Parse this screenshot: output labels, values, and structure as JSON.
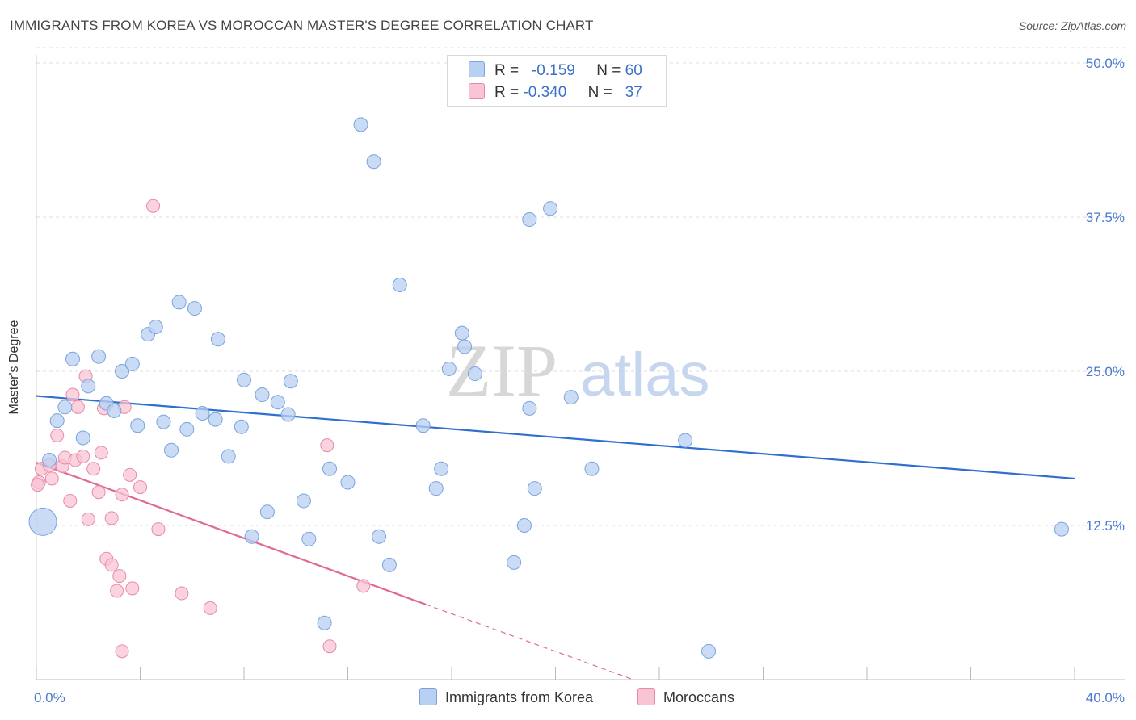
{
  "title": "IMMIGRANTS FROM KOREA VS MOROCCAN MASTER'S DEGREE CORRELATION CHART",
  "source": "Source: ZipAtlas.com",
  "watermark": {
    "zip": "ZIP",
    "atlas": "atlas"
  },
  "legend": {
    "rows": [
      {
        "r_label": "R =",
        "r_value": "-0.159",
        "n_label": "N =",
        "n_value": "60"
      },
      {
        "r_label": "R =",
        "r_value": "-0.340",
        "n_label": "N =",
        "n_value": "37"
      }
    ]
  },
  "bottom_legend": {
    "korea": "Immigrants from Korea",
    "moroccans": "Moroccans"
  },
  "colors": {
    "korea_fill": "#b8d0f2",
    "korea_stroke": "#7aa3de",
    "korea_line": "#2f6fd0",
    "moroccan_fill": "#f8c4d4",
    "moroccan_stroke": "#e88aa8",
    "moroccan_line": "#e06a96",
    "tick_text": "#4a7bd0",
    "grid": "#dddddd"
  },
  "chart_data": {
    "type": "scatter",
    "title": "IMMIGRANTS FROM KOREA VS MOROCCAN MASTER'S DEGREE CORRELATION CHART",
    "xlabel": "",
    "ylabel": "Master's Degree",
    "xlim": [
      0,
      40
    ],
    "ylim": [
      0,
      50
    ],
    "x_tick_labels": [
      "0.0%",
      "40.0%"
    ],
    "y_ticks": [
      12.5,
      25.0,
      37.5,
      50.0
    ],
    "y_tick_labels": [
      "12.5%",
      "25.0%",
      "37.5%",
      "50.0%"
    ],
    "legend_position": "top-center",
    "series": [
      {
        "name": "Immigrants from Korea",
        "r": -0.159,
        "n": 60,
        "trend": {
          "x": [
            0,
            40
          ],
          "y": [
            23.0,
            16.3
          ]
        },
        "points": [
          {
            "x": 0.5,
            "y": 17.8
          },
          {
            "x": 0.8,
            "y": 21.0
          },
          {
            "x": 1.1,
            "y": 22.1
          },
          {
            "x": 1.4,
            "y": 26.0
          },
          {
            "x": 1.8,
            "y": 19.6
          },
          {
            "x": 2.0,
            "y": 23.8
          },
          {
            "x": 2.4,
            "y": 26.2
          },
          {
            "x": 2.7,
            "y": 22.4
          },
          {
            "x": 3.0,
            "y": 21.8
          },
          {
            "x": 3.3,
            "y": 25.0
          },
          {
            "x": 3.7,
            "y": 25.6
          },
          {
            "x": 3.9,
            "y": 20.6
          },
          {
            "x": 4.3,
            "y": 28.0
          },
          {
            "x": 4.6,
            "y": 28.6
          },
          {
            "x": 4.9,
            "y": 20.9
          },
          {
            "x": 5.2,
            "y": 18.6
          },
          {
            "x": 5.5,
            "y": 30.6
          },
          {
            "x": 5.8,
            "y": 20.3
          },
          {
            "x": 6.1,
            "y": 30.1
          },
          {
            "x": 6.4,
            "y": 21.6
          },
          {
            "x": 6.9,
            "y": 21.1
          },
          {
            "x": 7.0,
            "y": 27.6
          },
          {
            "x": 7.4,
            "y": 18.1
          },
          {
            "x": 7.9,
            "y": 20.5
          },
          {
            "x": 8.0,
            "y": 24.3
          },
          {
            "x": 8.3,
            "y": 11.6
          },
          {
            "x": 8.7,
            "y": 23.1
          },
          {
            "x": 8.9,
            "y": 13.6
          },
          {
            "x": 9.3,
            "y": 22.5
          },
          {
            "x": 9.7,
            "y": 21.5
          },
          {
            "x": 9.8,
            "y": 24.2
          },
          {
            "x": 10.3,
            "y": 14.5
          },
          {
            "x": 10.5,
            "y": 11.4
          },
          {
            "x": 11.1,
            "y": 4.6
          },
          {
            "x": 11.3,
            "y": 17.1
          },
          {
            "x": 12.0,
            "y": 16.0
          },
          {
            "x": 12.5,
            "y": 45.0
          },
          {
            "x": 13.0,
            "y": 42.0
          },
          {
            "x": 13.2,
            "y": 11.6
          },
          {
            "x": 13.6,
            "y": 9.3
          },
          {
            "x": 14.0,
            "y": 32.0
          },
          {
            "x": 14.9,
            "y": 20.6
          },
          {
            "x": 15.4,
            "y": 15.5
          },
          {
            "x": 15.6,
            "y": 17.1
          },
          {
            "x": 15.9,
            "y": 25.2
          },
          {
            "x": 16.4,
            "y": 28.1
          },
          {
            "x": 16.5,
            "y": 27.0
          },
          {
            "x": 16.9,
            "y": 24.8
          },
          {
            "x": 18.4,
            "y": 9.5
          },
          {
            "x": 18.8,
            "y": 12.5
          },
          {
            "x": 19.0,
            "y": 22.0
          },
          {
            "x": 19.0,
            "y": 37.3
          },
          {
            "x": 19.2,
            "y": 15.5
          },
          {
            "x": 19.8,
            "y": 38.2
          },
          {
            "x": 20.6,
            "y": 22.9
          },
          {
            "x": 21.4,
            "y": 17.1
          },
          {
            "x": 25.0,
            "y": 19.4
          },
          {
            "x": 25.9,
            "y": 2.3
          },
          {
            "x": 39.5,
            "y": 12.2
          },
          {
            "x": 0.25,
            "y": 12.8,
            "big": true
          }
        ]
      },
      {
        "name": "Moroccans",
        "r": -0.34,
        "n": 37,
        "trend": {
          "x": [
            0,
            15
          ],
          "y": [
            17.6,
            6.1
          ]
        },
        "trend_dashed": {
          "x": [
            15,
            23
          ],
          "y": [
            6.1,
            0
          ]
        },
        "points": [
          {
            "x": 0.1,
            "y": 16.0
          },
          {
            "x": 0.2,
            "y": 17.1
          },
          {
            "x": 0.5,
            "y": 17.4
          },
          {
            "x": 0.6,
            "y": 16.3
          },
          {
            "x": 0.8,
            "y": 19.8
          },
          {
            "x": 1.0,
            "y": 17.3
          },
          {
            "x": 1.1,
            "y": 18.0
          },
          {
            "x": 1.3,
            "y": 14.5
          },
          {
            "x": 1.4,
            "y": 23.1
          },
          {
            "x": 1.5,
            "y": 17.8
          },
          {
            "x": 1.6,
            "y": 22.1
          },
          {
            "x": 1.8,
            "y": 18.1
          },
          {
            "x": 1.9,
            "y": 24.6
          },
          {
            "x": 2.0,
            "y": 13.0
          },
          {
            "x": 2.2,
            "y": 17.1
          },
          {
            "x": 2.4,
            "y": 15.2
          },
          {
            "x": 2.5,
            "y": 18.4
          },
          {
            "x": 2.6,
            "y": 22.0
          },
          {
            "x": 2.7,
            "y": 9.8
          },
          {
            "x": 2.9,
            "y": 13.1
          },
          {
            "x": 2.9,
            "y": 9.3
          },
          {
            "x": 3.1,
            "y": 7.2
          },
          {
            "x": 3.2,
            "y": 8.4
          },
          {
            "x": 3.3,
            "y": 2.3
          },
          {
            "x": 3.3,
            "y": 15.0
          },
          {
            "x": 3.4,
            "y": 22.1
          },
          {
            "x": 3.6,
            "y": 16.6
          },
          {
            "x": 3.7,
            "y": 7.4
          },
          {
            "x": 4.0,
            "y": 15.6
          },
          {
            "x": 4.5,
            "y": 38.4
          },
          {
            "x": 4.7,
            "y": 12.2
          },
          {
            "x": 5.6,
            "y": 7.0
          },
          {
            "x": 6.7,
            "y": 5.8
          },
          {
            "x": 11.2,
            "y": 19.0
          },
          {
            "x": 11.3,
            "y": 2.7
          },
          {
            "x": 12.6,
            "y": 7.6
          },
          {
            "x": 0.05,
            "y": 15.8
          }
        ]
      }
    ]
  }
}
